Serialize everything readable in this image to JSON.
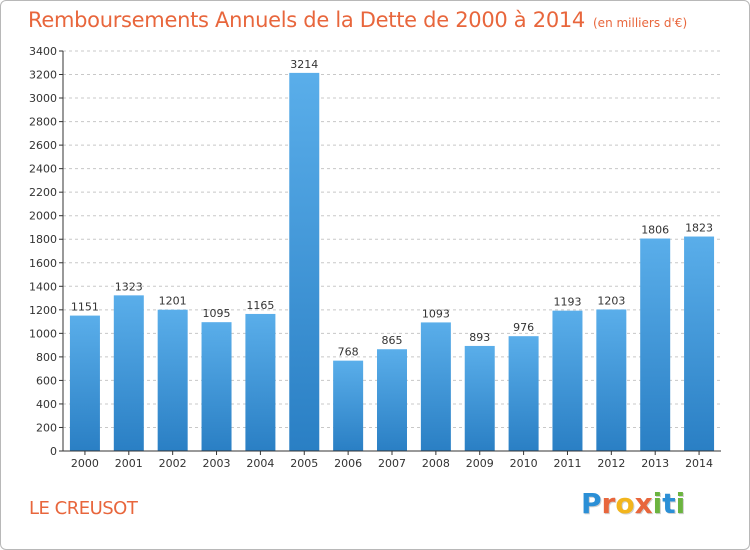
{
  "title": {
    "main": "Remboursements Annuels de la Dette de 2000 à 2014",
    "unit": "(en milliers d'€)"
  },
  "place": "LE CREUSOT",
  "logo": {
    "text": "Proxiti",
    "letters": [
      "P",
      "r",
      "o",
      "x",
      "i",
      "t",
      "i"
    ],
    "colors": [
      "#2b8fd6",
      "#e8663c",
      "#f2b51d",
      "#e8663c",
      "#6bb43f",
      "#2b8fd6",
      "#6bb43f"
    ]
  },
  "colors": {
    "title": "#e8663c",
    "bar_top": "#5aaeea",
    "bar_bottom": "#2a7fc4",
    "grid": "#c8c8c8",
    "axis": "#333333"
  },
  "chart_data": {
    "type": "bar",
    "title": "Remboursements Annuels de la Dette de 2000 à 2014",
    "ylabel": "en milliers d'€",
    "xlabel": "",
    "categories": [
      "2000",
      "2001",
      "2002",
      "2003",
      "2004",
      "2005",
      "2006",
      "2007",
      "2008",
      "2009",
      "2010",
      "2011",
      "2012",
      "2013",
      "2014"
    ],
    "values": [
      1151,
      1323,
      1201,
      1095,
      1165,
      3214,
      768,
      865,
      1093,
      893,
      976,
      1193,
      1203,
      1806,
      1823
    ],
    "ylim": [
      0,
      3400
    ],
    "yticks": [
      0,
      200,
      400,
      600,
      800,
      1000,
      1200,
      1400,
      1600,
      1800,
      2000,
      2200,
      2400,
      2600,
      2800,
      3000,
      3200,
      3400
    ],
    "grid": true,
    "legend": "none"
  }
}
